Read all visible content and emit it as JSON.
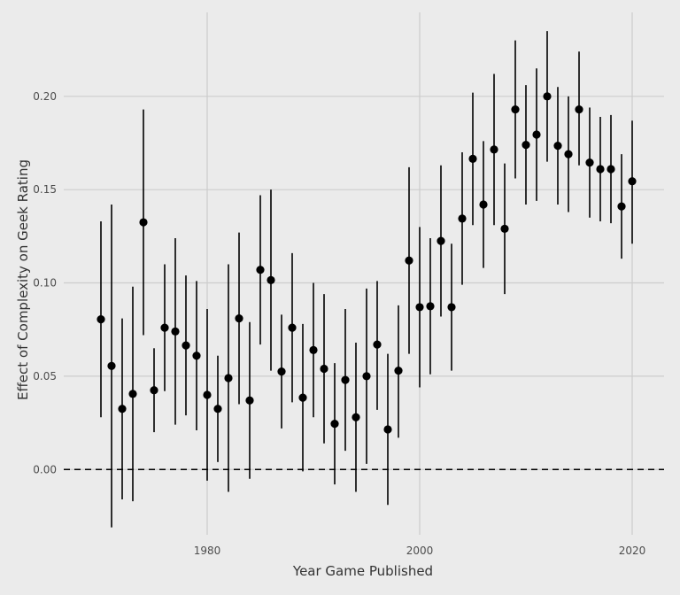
{
  "chart_data": {
    "type": "scatter",
    "xlabel": "Year Game Published",
    "ylabel": "Effect of Complexity on Geek Rating",
    "xlim": [
      1966.5,
      2023
    ],
    "ylim": [
      -0.035,
      0.245
    ],
    "x_ticks": [
      1980,
      2000,
      2020
    ],
    "x_tick_labels": [
      "1980",
      "2000",
      "2020"
    ],
    "y_ticks": [
      0.0,
      0.05,
      0.1,
      0.15,
      0.2
    ],
    "y_tick_labels": [
      "0.00",
      "0.05",
      "0.10",
      "0.15",
      "0.20"
    ],
    "reference_line": {
      "y": 0,
      "style": "dashed"
    },
    "grid": true,
    "points": [
      {
        "x": 1970,
        "y": 0.0805,
        "lo": 0.028,
        "hi": 0.133
      },
      {
        "x": 1971,
        "y": 0.0555,
        "lo": -0.031,
        "hi": 0.142
      },
      {
        "x": 1972,
        "y": 0.0325,
        "lo": -0.016,
        "hi": 0.081
      },
      {
        "x": 1973,
        "y": 0.0405,
        "lo": -0.017,
        "hi": 0.098
      },
      {
        "x": 1974,
        "y": 0.1325,
        "lo": 0.072,
        "hi": 0.193
      },
      {
        "x": 1975,
        "y": 0.0425,
        "lo": 0.02,
        "hi": 0.065
      },
      {
        "x": 1976,
        "y": 0.076,
        "lo": 0.042,
        "hi": 0.11
      },
      {
        "x": 1977,
        "y": 0.074,
        "lo": 0.024,
        "hi": 0.124
      },
      {
        "x": 1978,
        "y": 0.0665,
        "lo": 0.029,
        "hi": 0.104
      },
      {
        "x": 1979,
        "y": 0.061,
        "lo": 0.021,
        "hi": 0.101
      },
      {
        "x": 1980,
        "y": 0.04,
        "lo": -0.006,
        "hi": 0.086
      },
      {
        "x": 1981,
        "y": 0.0325,
        "lo": 0.004,
        "hi": 0.061
      },
      {
        "x": 1982,
        "y": 0.049,
        "lo": -0.012,
        "hi": 0.11
      },
      {
        "x": 1983,
        "y": 0.081,
        "lo": 0.035,
        "hi": 0.127
      },
      {
        "x": 1984,
        "y": 0.037,
        "lo": -0.005,
        "hi": 0.079
      },
      {
        "x": 1985,
        "y": 0.107,
        "lo": 0.067,
        "hi": 0.147
      },
      {
        "x": 1986,
        "y": 0.1015,
        "lo": 0.053,
        "hi": 0.15
      },
      {
        "x": 1987,
        "y": 0.0525,
        "lo": 0.022,
        "hi": 0.083
      },
      {
        "x": 1988,
        "y": 0.076,
        "lo": 0.036,
        "hi": 0.116
      },
      {
        "x": 1989,
        "y": 0.0385,
        "lo": -0.001,
        "hi": 0.078
      },
      {
        "x": 1990,
        "y": 0.064,
        "lo": 0.028,
        "hi": 0.1
      },
      {
        "x": 1991,
        "y": 0.054,
        "lo": 0.014,
        "hi": 0.094
      },
      {
        "x": 1992,
        "y": 0.0245,
        "lo": -0.008,
        "hi": 0.057
      },
      {
        "x": 1993,
        "y": 0.048,
        "lo": 0.01,
        "hi": 0.086
      },
      {
        "x": 1994,
        "y": 0.028,
        "lo": -0.012,
        "hi": 0.068
      },
      {
        "x": 1995,
        "y": 0.05,
        "lo": 0.003,
        "hi": 0.097
      },
      {
        "x": 1996,
        "y": 0.067,
        "lo": 0.032,
        "hi": 0.101
      },
      {
        "x": 1997,
        "y": 0.0215,
        "lo": -0.019,
        "hi": 0.062
      },
      {
        "x": 1998,
        "y": 0.053,
        "lo": 0.017,
        "hi": 0.088
      },
      {
        "x": 1999,
        "y": 0.112,
        "lo": 0.062,
        "hi": 0.162
      },
      {
        "x": 2000,
        "y": 0.087,
        "lo": 0.044,
        "hi": 0.13
      },
      {
        "x": 2001,
        "y": 0.0875,
        "lo": 0.051,
        "hi": 0.124
      },
      {
        "x": 2002,
        "y": 0.1225,
        "lo": 0.082,
        "hi": 0.163
      },
      {
        "x": 2003,
        "y": 0.087,
        "lo": 0.053,
        "hi": 0.121
      },
      {
        "x": 2004,
        "y": 0.1345,
        "lo": 0.099,
        "hi": 0.17
      },
      {
        "x": 2005,
        "y": 0.1665,
        "lo": 0.131,
        "hi": 0.202
      },
      {
        "x": 2006,
        "y": 0.142,
        "lo": 0.108,
        "hi": 0.176
      },
      {
        "x": 2007,
        "y": 0.1715,
        "lo": 0.131,
        "hi": 0.212
      },
      {
        "x": 2008,
        "y": 0.129,
        "lo": 0.094,
        "hi": 0.164
      },
      {
        "x": 2009,
        "y": 0.193,
        "lo": 0.156,
        "hi": 0.23
      },
      {
        "x": 2010,
        "y": 0.174,
        "lo": 0.142,
        "hi": 0.206
      },
      {
        "x": 2011,
        "y": 0.1795,
        "lo": 0.144,
        "hi": 0.215
      },
      {
        "x": 2012,
        "y": 0.2,
        "lo": 0.165,
        "hi": 0.235
      },
      {
        "x": 2013,
        "y": 0.1735,
        "lo": 0.142,
        "hi": 0.205
      },
      {
        "x": 2014,
        "y": 0.169,
        "lo": 0.138,
        "hi": 0.2
      },
      {
        "x": 2015,
        "y": 0.193,
        "lo": 0.163,
        "hi": 0.224
      },
      {
        "x": 2016,
        "y": 0.1645,
        "lo": 0.135,
        "hi": 0.194
      },
      {
        "x": 2017,
        "y": 0.161,
        "lo": 0.133,
        "hi": 0.189
      },
      {
        "x": 2018,
        "y": 0.161,
        "lo": 0.132,
        "hi": 0.19
      },
      {
        "x": 2019,
        "y": 0.141,
        "lo": 0.113,
        "hi": 0.169
      },
      {
        "x": 2020,
        "y": 0.1545,
        "lo": 0.121,
        "hi": 0.187
      }
    ]
  }
}
